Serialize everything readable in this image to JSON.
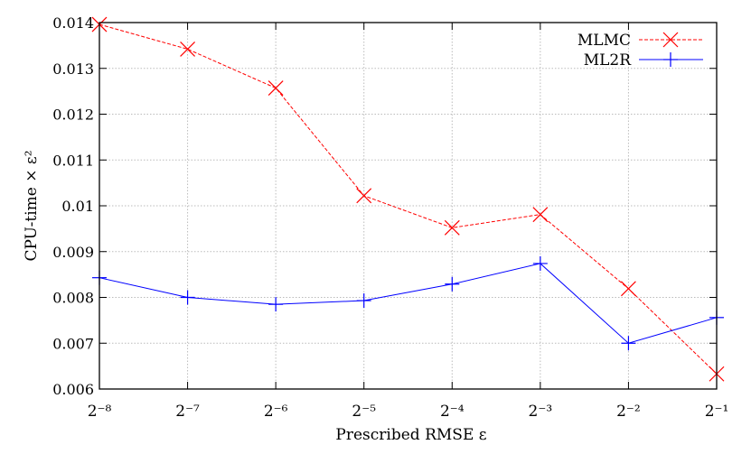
{
  "chart_data": {
    "type": "line",
    "title": "",
    "xlabel": "Prescribed RMSE ε",
    "ylabel": "CPU-time × ε²",
    "x_scale": "log2",
    "x": [
      -8,
      -7,
      -6,
      -5,
      -4,
      -3,
      -2,
      -1
    ],
    "x_tick_labels": [
      "2⁻⁸",
      "2⁻⁷",
      "2⁻⁶",
      "2⁻⁵",
      "2⁻⁴",
      "2⁻³",
      "2⁻²",
      "2⁻¹"
    ],
    "ylim": [
      0.006,
      0.014
    ],
    "y_ticks": [
      0.006,
      0.007,
      0.008,
      0.009,
      0.01,
      0.011,
      0.012,
      0.013,
      0.014
    ],
    "y_tick_labels": [
      "0.006",
      "0.007",
      "0.008",
      "0.009",
      "0.01",
      "0.011",
      "0.012",
      "0.013",
      "0.014"
    ],
    "grid": true,
    "legend_position": "top-right",
    "series": [
      {
        "name": "MLMC",
        "color": "#ff0000",
        "line": "dashed",
        "marker": "x",
        "values": [
          0.01396,
          0.01342,
          0.01257,
          0.01022,
          0.00952,
          0.00981,
          0.00819,
          0.00633
        ]
      },
      {
        "name": "ML2R",
        "color": "#0000ff",
        "line": "solid",
        "marker": "+",
        "values": [
          0.00843,
          0.008,
          0.00785,
          0.00793,
          0.00829,
          0.00874,
          0.007,
          0.00756
        ]
      }
    ]
  }
}
